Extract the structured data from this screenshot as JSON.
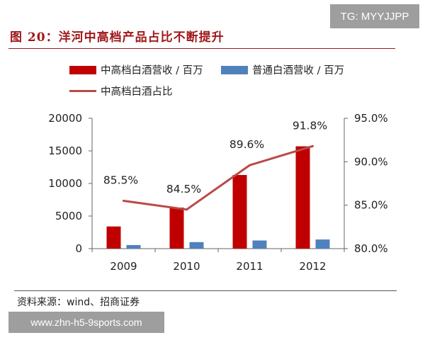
{
  "header": {
    "title": "图 20：洋河中高档产品占比不断提升",
    "tag": "TG: MYYJJPP"
  },
  "footer": {
    "source": "资料来源：wind、招商证券",
    "watermark": "www.zhn-h5-9sports.com"
  },
  "colors": {
    "high_bar": "#c00000",
    "regular_bar": "#4f81bd",
    "line": "#b94a48",
    "title": "#a0181a"
  },
  "chart_data": {
    "type": "bar",
    "categories": [
      "2009",
      "2010",
      "2011",
      "2012"
    ],
    "series": [
      {
        "name": "中高档白酒营收 / 百万",
        "kind": "bar",
        "axis": "left",
        "values": [
          3400,
          6300,
          11300,
          15700
        ]
      },
      {
        "name": "普通白酒营收 / 百万",
        "kind": "bar",
        "axis": "left",
        "values": [
          550,
          1000,
          1250,
          1400
        ]
      },
      {
        "name": "中高档白酒占比",
        "kind": "line",
        "axis": "right",
        "values": [
          85.5,
          84.5,
          89.6,
          91.8
        ],
        "labels": [
          "85.5%",
          "84.5%",
          "89.6%",
          "91.8%"
        ]
      }
    ],
    "y_left": {
      "lim": [
        0,
        20000
      ],
      "ticks": [
        "0",
        "5000",
        "10000",
        "15000",
        "20000"
      ]
    },
    "y_right": {
      "lim": [
        80,
        95
      ],
      "ticks": [
        "80.0%",
        "85.0%",
        "90.0%",
        "95.0%"
      ]
    },
    "grid": false,
    "legend": "top"
  }
}
